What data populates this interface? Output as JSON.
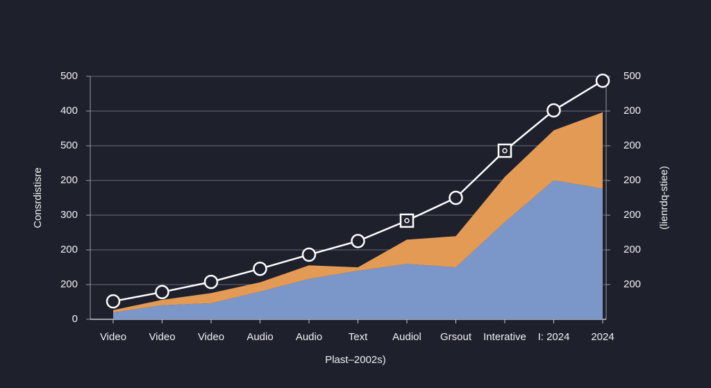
{
  "chart_data": {
    "type": "stacked-area-line",
    "y_label": "Consrdistisre",
    "y2_label": "(lienrdq-stiee)",
    "x_label": "Plast–2002s)",
    "categories": [
      "Video",
      "Video",
      "Video",
      "Audio",
      "Audio",
      "Text",
      "Audiol",
      "Grsout",
      "Interative",
      "I: 2024",
      "2024"
    ],
    "series": [
      {
        "name": "blue",
        "kind": "area",
        "color": "#7b97c9",
        "values": [
          14,
          29,
          33,
          57,
          83,
          100,
          114,
          107,
          200,
          286,
          269
        ]
      },
      {
        "name": "orange",
        "kind": "area",
        "color": "#e39a55",
        "values": [
          5,
          11,
          21,
          19,
          28,
          7,
          50,
          64,
          93,
          103,
          157
        ]
      },
      {
        "name": "line",
        "kind": "line",
        "color": "#ffffff",
        "values": [
          37,
          56,
          77,
          104,
          133,
          161,
          203,
          250,
          347,
          430,
          491
        ],
        "markers": [
          "circle",
          "circle",
          "circle",
          "circle",
          "circle",
          "circle",
          "square",
          "circle",
          "square",
          "circle",
          "circle"
        ]
      }
    ],
    "ylim": [
      0,
      500
    ],
    "yticks": [
      0,
      {
        "value": 71.43,
        "label": "200"
      },
      {
        "value": 142.86,
        "label": "200"
      },
      {
        "value": 214.29,
        "label": "300"
      },
      {
        "value": 285.71,
        "label": "200"
      },
      {
        "value": 357.14,
        "label": "500"
      },
      {
        "value": 428.57,
        "label": "400"
      },
      500
    ],
    "y2lim": [
      0,
      500
    ],
    "y2ticks": [
      {
        "value": 71.43,
        "label": "200"
      },
      {
        "value": 142.86,
        "label": "200"
      },
      {
        "value": 214.29,
        "label": "200"
      },
      {
        "value": 285.71,
        "label": "200"
      },
      {
        "value": 357.14,
        "label": "200"
      },
      {
        "value": 428.57,
        "label": "200"
      },
      500
    ],
    "grid": true
  }
}
